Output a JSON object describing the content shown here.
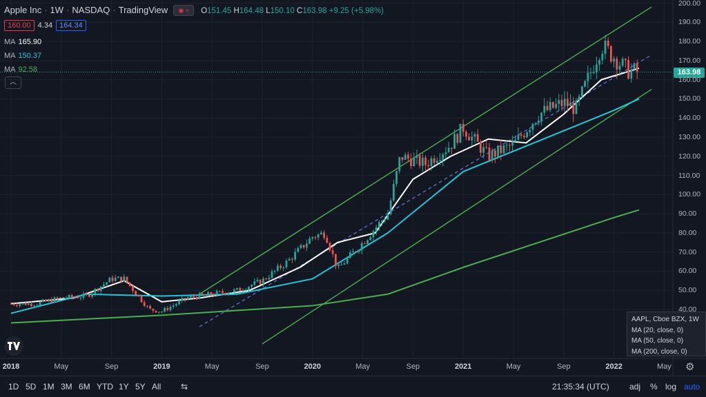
{
  "header": {
    "title": "Apple Inc",
    "interval": "1W",
    "exchange": "NASDAQ",
    "source": "TradingView",
    "ohlc": {
      "o_label": "O",
      "o": "151.45",
      "h_label": "H",
      "h": "164.48",
      "l_label": "L",
      "l": "150.10",
      "c_label": "C",
      "c": "163.98",
      "change": "+9.25 (+5.98%)"
    }
  },
  "trade": {
    "sell": "160.00",
    "spread": "4.34",
    "buy": "164.34"
  },
  "indicators": [
    {
      "label": "MA",
      "value": "165.90",
      "color": "#ffffff"
    },
    {
      "label": "MA",
      "value": "150.37",
      "color": "#26c6da"
    },
    {
      "label": "MA",
      "value": "92.58",
      "color": "#4caf50"
    }
  ],
  "price_tag": "163.98",
  "info_box": {
    "line1": "AAPL, Cboe BZX, 1W",
    "line2": "MA (20, close, 0)",
    "line3": "MA (50, close, 0)",
    "line4": "MA (200, close, 0)"
  },
  "bottom_bar": {
    "ranges": [
      "1D",
      "5D",
      "1M",
      "3M",
      "6M",
      "YTD",
      "1Y",
      "5Y",
      "All"
    ],
    "time": "21:35:34 (UTC)",
    "adj": "adj",
    "percent": "%",
    "log": "log",
    "auto": "auto"
  },
  "colors": {
    "up": "#26a69a",
    "down": "#ef5350",
    "ma20": "#ffffff",
    "ma50": "#26c6da",
    "ma200": "#4caf50",
    "channel": "#4caf50",
    "mid_dashed": "#5c6bc0"
  },
  "chart_data": {
    "type": "line",
    "symbol": "AAPL",
    "interval": "1W",
    "x_labels": [
      "2018",
      "May",
      "Sep",
      "2019",
      "May",
      "Sep",
      "2020",
      "May",
      "Sep",
      "2021",
      "May",
      "Sep",
      "2022",
      "May"
    ],
    "y_ticks": [
      40,
      50,
      60,
      70,
      80,
      90,
      100,
      110,
      120,
      130,
      140,
      150,
      160,
      170,
      180,
      190,
      200
    ],
    "ylim": [
      28,
      200
    ],
    "series": [
      {
        "name": "AAPL",
        "x": [
          "2018-01",
          "2018-03",
          "2018-05",
          "2018-07",
          "2018-09",
          "2018-10",
          "2018-12",
          "2019-01",
          "2019-03",
          "2019-05",
          "2019-07",
          "2019-09",
          "2019-11",
          "2020-01",
          "2020-02",
          "2020-03",
          "2020-05",
          "2020-07",
          "2020-08",
          "2020-09",
          "2020-10",
          "2020-12",
          "2021-01",
          "2021-03",
          "2021-05",
          "2021-07",
          "2021-09",
          "2021-10",
          "2021-12",
          "2022-01",
          "2022-02",
          "2022-03"
        ],
        "values": [
          43,
          43,
          46,
          47,
          56,
          56,
          40,
          39,
          46,
          48,
          50,
          55,
          65,
          78,
          80,
          61,
          75,
          90,
          120,
          118,
          116,
          126,
          135,
          120,
          126,
          142,
          148,
          145,
          178,
          172,
          165,
          164
        ]
      },
      {
        "name": "MA 20",
        "x": [
          "2018-01",
          "2018-06",
          "2018-10",
          "2019-01",
          "2019-04",
          "2019-08",
          "2019-12",
          "2020-03",
          "2020-06",
          "2020-09",
          "2020-12",
          "2021-03",
          "2021-06",
          "2021-09",
          "2021-12",
          "2022-03"
        ],
        "values": [
          43,
          46,
          55,
          44,
          46,
          50,
          62,
          75,
          80,
          108,
          120,
          129,
          127,
          142,
          160,
          166
        ]
      },
      {
        "name": "MA 50",
        "x": [
          "2018-01",
          "2018-07",
          "2019-01",
          "2019-07",
          "2020-01",
          "2020-07",
          "2021-01",
          "2021-07",
          "2022-01",
          "2022-03"
        ],
        "values": [
          38,
          48,
          47,
          48,
          56,
          80,
          112,
          128,
          144,
          150
        ]
      },
      {
        "name": "MA 200",
        "x": [
          "2018-01",
          "2019-01",
          "2020-01",
          "2020-07",
          "2021-01",
          "2021-07",
          "2022-01",
          "2022-03"
        ],
        "values": [
          33,
          37,
          42,
          48,
          62,
          75,
          88,
          92
        ]
      }
    ],
    "trendlines": [
      {
        "x": [
          "2019-04",
          "2022-04"
        ],
        "values": [
          48,
          198
        ]
      },
      {
        "x": [
          "2019-04",
          "2022-04"
        ],
        "values": [
          31,
          173
        ]
      },
      {
        "x": [
          "2019-09",
          "2022-04"
        ],
        "values": [
          22,
          155
        ]
      }
    ]
  }
}
